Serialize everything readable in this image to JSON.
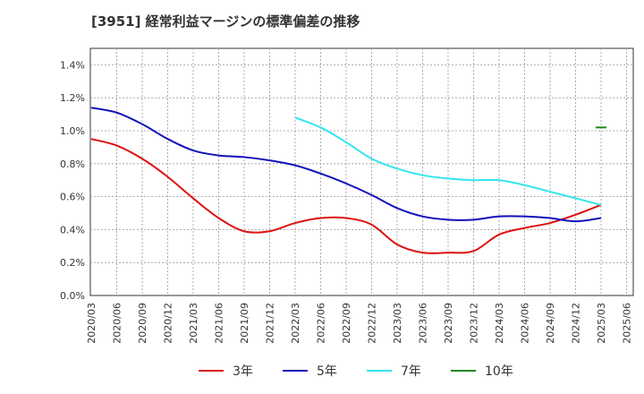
{
  "chart_data": {
    "type": "line",
    "title": "[3951]  経常利益マージンの標準偏差の推移",
    "xlabel": "",
    "ylabel": "",
    "ylim": [
      0,
      0.015
    ],
    "y_ticks": [
      "0.0%",
      "0.2%",
      "0.4%",
      "0.6%",
      "0.8%",
      "1.0%",
      "1.2%",
      "1.4%"
    ],
    "x_ticks": [
      "2020/03",
      "2020/06",
      "2020/09",
      "2020/12",
      "2021/03",
      "2021/06",
      "2021/09",
      "2021/12",
      "2022/03",
      "2022/06",
      "2022/09",
      "2022/12",
      "2023/03",
      "2023/06",
      "2023/09",
      "2023/12",
      "2024/03",
      "2024/06",
      "2024/09",
      "2024/12",
      "2025/03",
      "2025/06"
    ],
    "grid": true,
    "legend_position": "bottom",
    "series": [
      {
        "name": "3年",
        "color": "#dd1111",
        "x": [
          "2020/03",
          "2020/06",
          "2020/09",
          "2020/12",
          "2021/03",
          "2021/06",
          "2021/09",
          "2021/12",
          "2022/03",
          "2022/06",
          "2022/09",
          "2022/12",
          "2023/03",
          "2023/06",
          "2023/09",
          "2023/12",
          "2024/03",
          "2024/06",
          "2024/09",
          "2024/12",
          "2025/03"
        ],
        "values": [
          0.0095,
          0.0091,
          0.0083,
          0.0072,
          0.0059,
          0.0047,
          0.0039,
          0.0039,
          0.0044,
          0.0047,
          0.0047,
          0.0043,
          0.0031,
          0.0026,
          0.0026,
          0.0027,
          0.0037,
          0.0041,
          0.0044,
          0.0049,
          0.0055
        ]
      },
      {
        "name": "5年",
        "color": "#1111bb",
        "x": [
          "2020/03",
          "2020/06",
          "2020/09",
          "2020/12",
          "2021/03",
          "2021/06",
          "2021/09",
          "2021/12",
          "2022/03",
          "2022/06",
          "2022/09",
          "2022/12",
          "2023/03",
          "2023/06",
          "2023/09",
          "2023/12",
          "2024/03",
          "2024/06",
          "2024/09",
          "2024/12",
          "2025/03"
        ],
        "values": [
          0.0114,
          0.0111,
          0.0104,
          0.0095,
          0.0088,
          0.0085,
          0.0084,
          0.0082,
          0.0079,
          0.0074,
          0.0068,
          0.0061,
          0.0053,
          0.0048,
          0.0046,
          0.0046,
          0.0048,
          0.0048,
          0.0047,
          0.0045,
          0.0047
        ]
      },
      {
        "name": "7年",
        "color": "#33e5ee",
        "x": [
          "2022/03",
          "2022/06",
          "2022/09",
          "2022/12",
          "2023/03",
          "2023/06",
          "2023/09",
          "2023/12",
          "2024/03",
          "2024/06",
          "2024/09",
          "2024/12",
          "2025/03"
        ],
        "values": [
          0.0108,
          0.0102,
          0.0093,
          0.0083,
          0.0077,
          0.0073,
          0.0071,
          0.007,
          0.007,
          0.0067,
          0.0063,
          0.0059,
          0.0055
        ]
      },
      {
        "name": "10年",
        "color": "#228822",
        "x": [
          "2025/03"
        ],
        "values": [
          0.0102
        ]
      }
    ]
  }
}
